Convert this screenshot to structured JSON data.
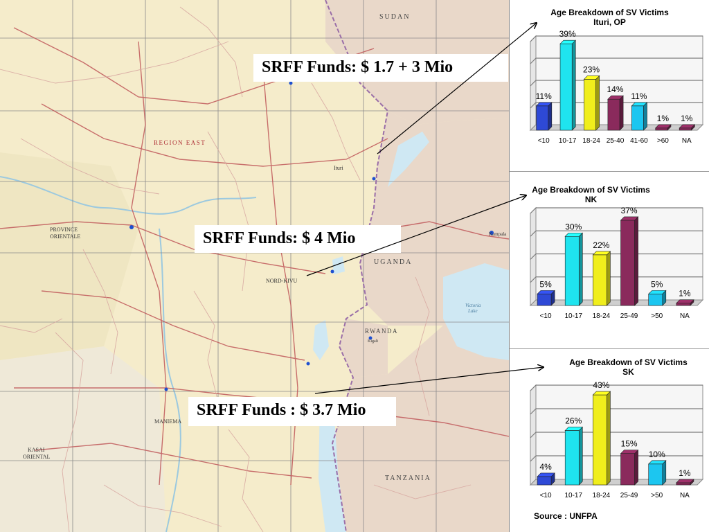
{
  "map": {
    "labels": {
      "sudan": "SUDAN",
      "region_east": "REGION EAST",
      "ituri": "Ituri",
      "province_orientale": "PROVINCE\nORIENTALE",
      "nord_kivu": "NORD-KIVU",
      "uganda": "UGANDA",
      "kampala": "Kampala",
      "rwanda": "RWANDA",
      "kigali": "Kigali",
      "victoria_lake": "Victoria\nLake",
      "maniema": "MANIEMA",
      "kasai_oriental": "KASAI\nORIENTAL",
      "tanzania": "TANZANIA"
    },
    "colors": {
      "land": "#f5eccb",
      "land_alt": "#efe6c2",
      "neighbor": "#e9d8c9",
      "water": "#cfe8f3",
      "road_major": "#c0585a",
      "road_minor": "#d8a9a2",
      "grid": "#8a8a8a",
      "border": "#9a6ea8"
    }
  },
  "funds": {
    "ituri": "SRFF Funds:  $ 1.7 + 3 Mio",
    "nk": "SRFF Funds:  $ 4 Mio",
    "sk": "SRFF Funds : $ 3.7 Mio"
  },
  "source": "Source : UNFPA",
  "chart_data": [
    {
      "type": "bar",
      "title": "Age Breakdown of SV Victims",
      "subtitle": "Ituri, OP",
      "categories": [
        "<10",
        "10-17",
        "18-24",
        "25-40",
        "41-60",
        ">60",
        "NA"
      ],
      "values": [
        11,
        39,
        23,
        14,
        11,
        1,
        1
      ],
      "value_labels": [
        "11%",
        "39%",
        "23%",
        "14%",
        "11%",
        "1%",
        "1%"
      ],
      "bar_colors": [
        "#2e49d6",
        "#1fe4ef",
        "#f0ee1c",
        "#8a2a5c",
        "#1cc6f0",
        "#8a2a5c",
        "#8a2a5c"
      ],
      "ylim": [
        0,
        40
      ],
      "grid": true
    },
    {
      "type": "bar",
      "title": "Age Breakdown of SV Victims",
      "subtitle": "NK",
      "categories": [
        "<10",
        "10-17",
        "18-24",
        "25-49",
        ">50",
        "NA"
      ],
      "values": [
        5,
        30,
        22,
        37,
        5,
        1
      ],
      "value_labels": [
        "5%",
        "30%",
        "22%",
        "37%",
        "5%",
        "1%"
      ],
      "bar_colors": [
        "#2e49d6",
        "#1fe4ef",
        "#f0ee1c",
        "#8a2a5c",
        "#1cc6f0",
        "#8a2a5c"
      ],
      "ylim": [
        0,
        40
      ],
      "grid": true
    },
    {
      "type": "bar",
      "title": "Age Breakdown of SV Victims",
      "subtitle": "SK",
      "categories": [
        "<10",
        "10-17",
        "18-24",
        "25-49",
        ">50",
        "NA"
      ],
      "values": [
        4,
        26,
        43,
        15,
        10,
        1
      ],
      "value_labels": [
        "4%",
        "26%",
        "43%",
        "15%",
        "10%",
        "1%"
      ],
      "bar_colors": [
        "#2e49d6",
        "#1fe4ef",
        "#f0ee1c",
        "#8a2a5c",
        "#1cc6f0",
        "#8a2a5c"
      ],
      "ylim": [
        0,
        45
      ],
      "grid": true
    }
  ]
}
